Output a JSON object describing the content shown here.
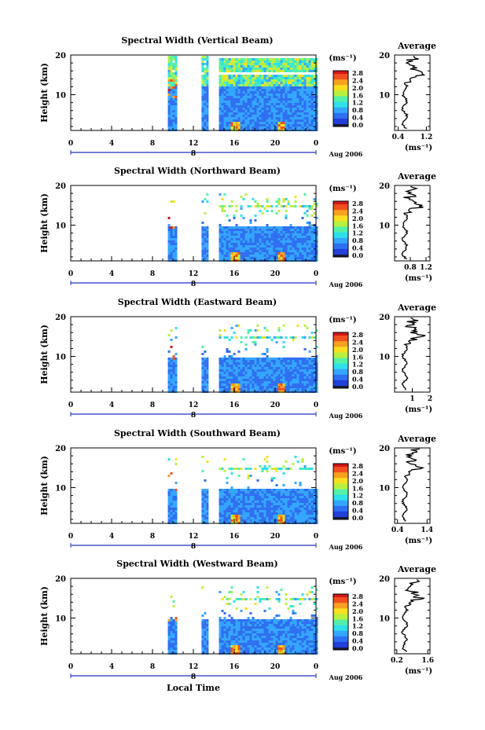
{
  "figure": {
    "xlabel": "Local Time",
    "ylabel": "Height (km)",
    "colorbar_unit": "(ms⁻¹)",
    "date_label": "Aug 2006",
    "day_marker": "8",
    "avg_title": "Average",
    "avg_xlabel": "(ms⁻¹)"
  },
  "chart_data": [
    {
      "type": "heatmap",
      "title": "Spectral Width (Vertical Beam)",
      "xlabel": "Local Time",
      "ylabel": "Height (km)",
      "x_ticks": [
        "0",
        "4",
        "8",
        "12",
        "16",
        "20",
        "0"
      ],
      "y_ticks": [
        "20",
        "10"
      ],
      "xlim": [
        0,
        24
      ],
      "ylim": [
        1,
        20
      ],
      "data_time_ranges": [
        [
          9.5,
          10.2
        ],
        [
          12.8,
          13.3
        ],
        [
          14.5,
          24
        ]
      ],
      "colorbar": {
        "unit": "(ms⁻¹)",
        "ticks": [
          "2.8",
          "2.4",
          "2.0",
          "1.6",
          "1.2",
          "0.8",
          "0.4",
          "0.0"
        ],
        "range": [
          0,
          2.8
        ]
      },
      "average_profile": {
        "title": "Average",
        "xlabel": "(ms⁻¹)",
        "x_ticks": [
          "0.4",
          "1.2"
        ],
        "xlim": [
          0.3,
          1.3
        ],
        "y_ticks": [
          "20",
          "10"
        ]
      }
    },
    {
      "type": "heatmap",
      "title": "Spectral Width (Northward Beam)",
      "xlabel": "Local Time",
      "ylabel": "Height (km)",
      "x_ticks": [
        "0",
        "4",
        "8",
        "12",
        "16",
        "20",
        "0"
      ],
      "y_ticks": [
        "20",
        "10"
      ],
      "xlim": [
        0,
        24
      ],
      "ylim": [
        1,
        20
      ],
      "data_time_ranges": [
        [
          9.5,
          10.2
        ],
        [
          12.8,
          13.3
        ],
        [
          14.5,
          24
        ]
      ],
      "colorbar": {
        "unit": "(ms⁻¹)",
        "ticks": [
          "2.8",
          "2.4",
          "2.0",
          "1.6",
          "1.2",
          "0.8",
          "0.4",
          "0.0"
        ],
        "range": [
          0,
          2.8
        ]
      },
      "average_profile": {
        "title": "Average",
        "xlabel": "(ms⁻¹)",
        "x_ticks": [
          "0.8",
          "1.2"
        ],
        "xlim": [
          0.4,
          1.3
        ],
        "y_ticks": [
          "20",
          "10"
        ]
      }
    },
    {
      "type": "heatmap",
      "title": "Spectral Width (Eastward Beam)",
      "xlabel": "Local Time",
      "ylabel": "Height (km)",
      "x_ticks": [
        "0",
        "4",
        "8",
        "12",
        "16",
        "20",
        "0"
      ],
      "y_ticks": [
        "20",
        "10"
      ],
      "xlim": [
        0,
        24
      ],
      "ylim": [
        1,
        20
      ],
      "data_time_ranges": [
        [
          9.5,
          10.2
        ],
        [
          12.8,
          13.3
        ],
        [
          14.5,
          24
        ]
      ],
      "colorbar": {
        "unit": "(ms⁻¹)",
        "ticks": [
          "2.8",
          "2.4",
          "2.0",
          "1.6",
          "1.2",
          "0.8",
          "0.4",
          "0.0"
        ],
        "range": [
          0,
          2.8
        ]
      },
      "average_profile": {
        "title": "Average",
        "xlabel": "(ms⁻¹)",
        "x_ticks": [
          "1",
          "2"
        ],
        "xlim": [
          0,
          2
        ],
        "y_ticks": [
          "20",
          "10"
        ]
      }
    },
    {
      "type": "heatmap",
      "title": "Spectral Width (Southward Beam)",
      "xlabel": "Local Time",
      "ylabel": "Height (km)",
      "x_ticks": [
        "0",
        "4",
        "8",
        "12",
        "16",
        "20",
        "0"
      ],
      "y_ticks": [
        "20",
        "10"
      ],
      "xlim": [
        0,
        24
      ],
      "ylim": [
        1,
        20
      ],
      "data_time_ranges": [
        [
          9.5,
          10.2
        ],
        [
          12.8,
          13.3
        ],
        [
          14.5,
          24
        ]
      ],
      "colorbar": {
        "unit": "(ms⁻¹)",
        "ticks": [
          "2.8",
          "2.4",
          "2.0",
          "1.6",
          "1.2",
          "0.8",
          "0.4",
          "0.0"
        ],
        "range": [
          0,
          2.8
        ]
      },
      "average_profile": {
        "title": "Average",
        "xlabel": "(ms⁻¹)",
        "x_ticks": [
          "0.4",
          "1.4"
        ],
        "xlim": [
          0.3,
          1.5
        ],
        "y_ticks": [
          "20",
          "10"
        ]
      }
    },
    {
      "type": "heatmap",
      "title": "Spectral Width (Westward Beam)",
      "xlabel": "Local Time",
      "ylabel": "Height (km)",
      "x_ticks": [
        "0",
        "4",
        "8",
        "12",
        "16",
        "20",
        "0"
      ],
      "y_ticks": [
        "20",
        "10"
      ],
      "xlim": [
        0,
        24
      ],
      "ylim": [
        1,
        20
      ],
      "data_time_ranges": [
        [
          9.5,
          10.2
        ],
        [
          12.8,
          13.3
        ],
        [
          14.5,
          24
        ]
      ],
      "colorbar": {
        "unit": "(ms⁻¹)",
        "ticks": [
          "2.8",
          "2.4",
          "2.0",
          "1.6",
          "1.2",
          "0.8",
          "0.4",
          "0.0"
        ],
        "range": [
          0,
          2.8
        ]
      },
      "average_profile": {
        "title": "Average",
        "xlabel": "(ms⁻¹)",
        "x_ticks": [
          "0.2",
          "1.6"
        ],
        "xlim": [
          0.1,
          1.7
        ],
        "y_ticks": [
          "20",
          "10"
        ]
      }
    }
  ],
  "colors": {
    "colormap": [
      "#1f2a8a",
      "#2040d8",
      "#2f6ff0",
      "#35a6ff",
      "#2fe0e8",
      "#55f0a8",
      "#b8f040",
      "#f8e020",
      "#f8a020",
      "#f05020",
      "#d01818"
    ],
    "zero_band": "#1a1a3a",
    "axis": "#000000",
    "profile_line": "#000000"
  }
}
